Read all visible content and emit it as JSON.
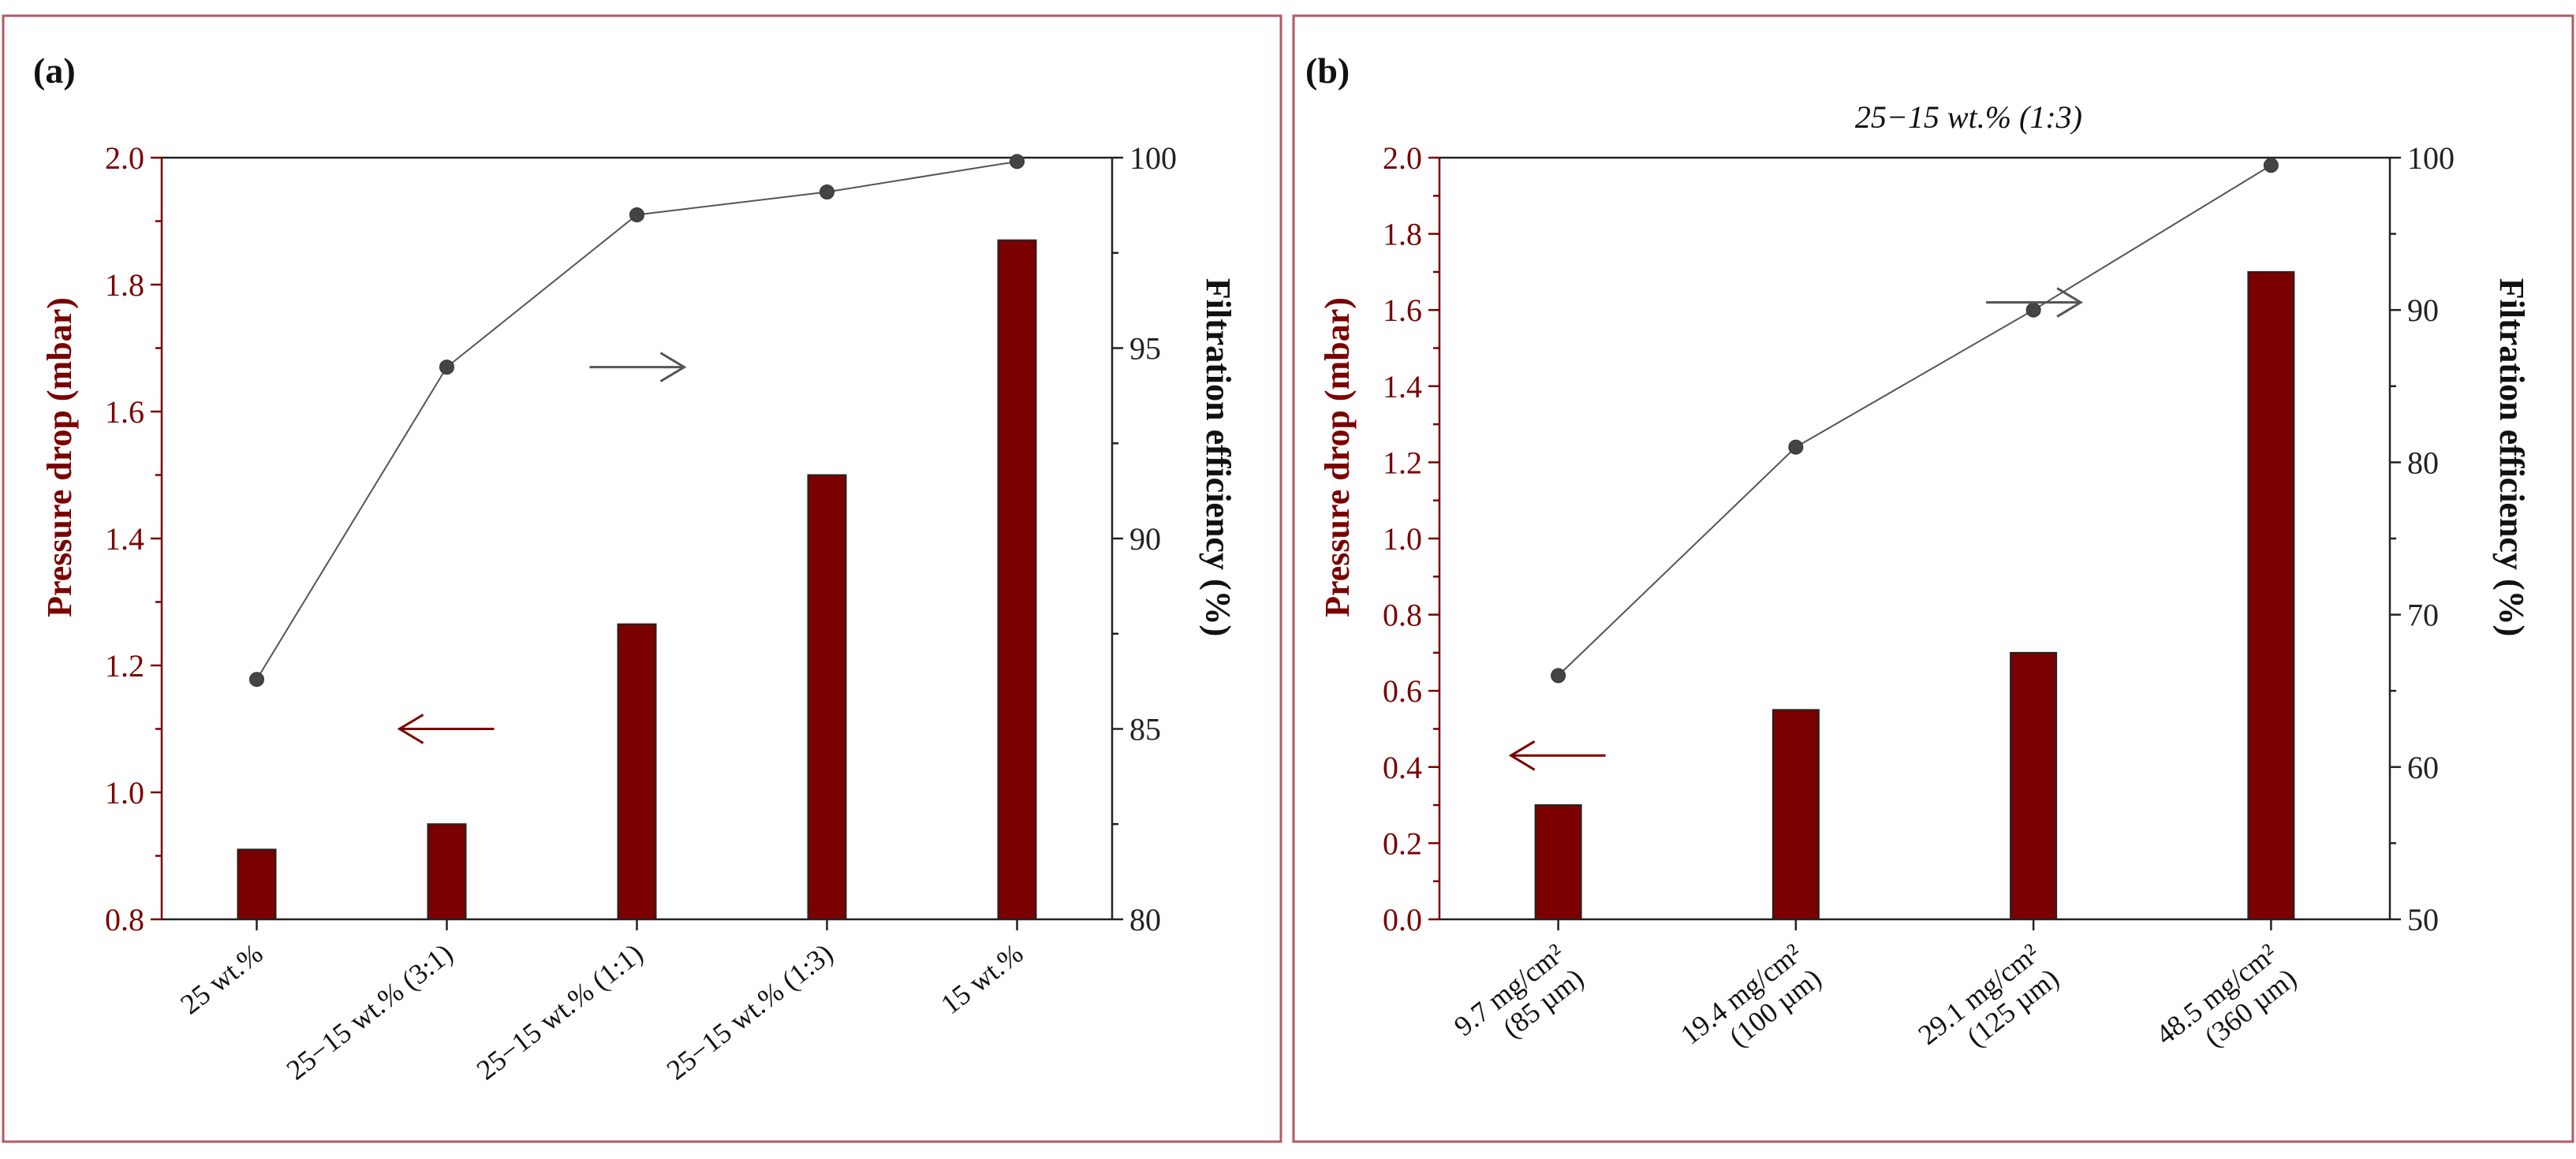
{
  "colors": {
    "bar": "#7a0000",
    "left_axis": "#7a0000",
    "line": "#555555",
    "marker": "#444444",
    "border": "#b05a66"
  },
  "chart_data": [
    {
      "type": "bar",
      "panel": "(a)",
      "categories": [
        "25 wt.%",
        "25−15 wt.% (3:1)",
        "25−15 wt.% (1:1)",
        "25−15 wt.% (1:3)",
        "15 wt.%"
      ],
      "series": [
        {
          "name": "Pressure drop",
          "axis": "left",
          "type": "bar",
          "values": [
            0.91,
            0.95,
            1.265,
            1.5,
            1.87
          ]
        },
        {
          "name": "Filtration efficiency",
          "axis": "right",
          "type": "line",
          "values": [
            86.3,
            94.5,
            98.5,
            99.1,
            99.9
          ]
        }
      ],
      "ylabel": "Pressure drop (mbar)",
      "ylabel_right": "Filtration efficiency (%)",
      "ylim": [
        0.8,
        2.0
      ],
      "yticks": [
        "0.8",
        "1.0",
        "1.2",
        "1.4",
        "1.6",
        "1.8",
        "2.0"
      ],
      "ylim_right": [
        80,
        100
      ],
      "yticks_right": [
        "80",
        "85",
        "90",
        "95",
        "100"
      ],
      "arrow_bars": {
        "direction": "left",
        "category_index": 1,
        "y": 1.1
      },
      "arrow_line": {
        "direction": "right",
        "category_index": 2,
        "y": 94.5
      },
      "subtitle": ""
    },
    {
      "type": "bar",
      "panel": "(b)",
      "categories": [
        [
          "9.7 mg/cm²",
          "(85 µm)"
        ],
        [
          "19.4 mg/cm²",
          "(100 µm)"
        ],
        [
          "29.1 mg/cm²",
          "(125 µm)"
        ],
        [
          "48.5 mg/cm²",
          "(360 µm)"
        ]
      ],
      "series": [
        {
          "name": "Pressure drop",
          "axis": "left",
          "type": "bar",
          "values": [
            0.3,
            0.55,
            0.7,
            1.7
          ]
        },
        {
          "name": "Filtration efficiency",
          "axis": "right",
          "type": "line",
          "values": [
            66.0,
            81.0,
            90.0,
            99.5
          ]
        }
      ],
      "ylabel": "Pressure drop (mbar)",
      "ylabel_right": "Filtration efficiency (%)",
      "ylim": [
        0.0,
        2.0
      ],
      "yticks": [
        "0.0",
        "0.2",
        "0.4",
        "0.6",
        "0.8",
        "1.0",
        "1.2",
        "1.4",
        "1.6",
        "1.8",
        "2.0"
      ],
      "ylim_right": [
        50,
        100
      ],
      "yticks_right": [
        "50",
        "60",
        "70",
        "80",
        "90",
        "100"
      ],
      "arrow_bars": {
        "direction": "left",
        "category_index": 0,
        "y": 0.43
      },
      "arrow_line": {
        "direction": "right",
        "category_index": 2,
        "y": 90.5
      },
      "subtitle": "25−15 wt.% (1:3)"
    }
  ]
}
